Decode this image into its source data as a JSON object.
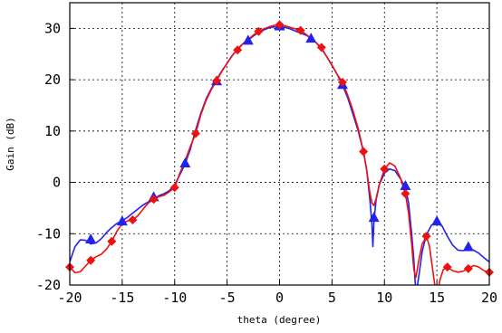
{
  "chart_data": {
    "type": "line",
    "xlabel": "theta (degree)",
    "ylabel": "Gain (dB)",
    "xlim": [
      -20,
      20
    ],
    "ylim": [
      -20,
      35
    ],
    "x_ticks": [
      -20,
      -15,
      -10,
      -5,
      0,
      5,
      10,
      15,
      20
    ],
    "y_ticks": [
      -20,
      -10,
      0,
      10,
      20,
      30
    ],
    "x_tick_labels": [
      "-20",
      "-15",
      "-10",
      "-5",
      "0",
      "5",
      "10",
      "15",
      "20"
    ],
    "y_tick_labels": [
      "-20",
      "-10",
      "0",
      "10",
      "20",
      "30"
    ],
    "grid": true,
    "grid_style": "dotted",
    "legend": "none",
    "series": [
      {
        "color": "#2222ee",
        "marker": "triangle",
        "curve": [
          [
            -20,
            -15.5
          ],
          [
            -19.5,
            -12.5
          ],
          [
            -19,
            -11.2
          ],
          [
            -18.5,
            -11.3
          ],
          [
            -18,
            -12
          ],
          [
            -17.5,
            -11.8
          ],
          [
            -17,
            -11
          ],
          [
            -16.5,
            -9.8
          ],
          [
            -16,
            -8.8
          ],
          [
            -15.5,
            -8
          ],
          [
            -15,
            -7.5
          ],
          [
            -14.5,
            -6.8
          ],
          [
            -14,
            -6
          ],
          [
            -13.5,
            -5.2
          ],
          [
            -13,
            -4.4
          ],
          [
            -12.5,
            -3.8
          ],
          [
            -12,
            -3.2
          ],
          [
            -11.5,
            -2.6
          ],
          [
            -11,
            -2.2
          ],
          [
            -10.5,
            -1.6
          ],
          [
            -10,
            -0.5
          ],
          [
            -9.5,
            1.5
          ],
          [
            -9,
            3.6
          ],
          [
            -8.5,
            6.5
          ],
          [
            -8,
            10.2
          ],
          [
            -7.5,
            13.5
          ],
          [
            -7,
            16.3
          ],
          [
            -6.5,
            18.3
          ],
          [
            -6,
            20
          ],
          [
            -5.5,
            21.7
          ],
          [
            -5,
            23.2
          ],
          [
            -4.5,
            24.7
          ],
          [
            -4,
            26
          ],
          [
            -3.5,
            27
          ],
          [
            -3,
            27.7
          ],
          [
            -2.5,
            28.5
          ],
          [
            -2,
            29.2
          ],
          [
            -1.5,
            29.7
          ],
          [
            -1,
            30.1
          ],
          [
            -0.5,
            30.3
          ],
          [
            0,
            30.3
          ],
          [
            0.5,
            30.2
          ],
          [
            1,
            29.9
          ],
          [
            1.5,
            29.5
          ],
          [
            2,
            29.1
          ],
          [
            2.5,
            28.7
          ],
          [
            3,
            28.1
          ],
          [
            3.5,
            27.2
          ],
          [
            4,
            26
          ],
          [
            4.5,
            24.5
          ],
          [
            5,
            22.8
          ],
          [
            5.5,
            21
          ],
          [
            6,
            19
          ],
          [
            6.5,
            16.5
          ],
          [
            7,
            13.3
          ],
          [
            7.5,
            10
          ],
          [
            8,
            6
          ],
          [
            8.3,
            2.5
          ],
          [
            8.6,
            -3
          ],
          [
            8.8,
            -8
          ],
          [
            8.9,
            -12.5
          ],
          [
            9,
            -7.5
          ],
          [
            9.2,
            -3.5
          ],
          [
            9.5,
            -0.5
          ],
          [
            10,
            1.8
          ],
          [
            10.5,
            2.6
          ],
          [
            11,
            2.3
          ],
          [
            11.5,
            0.8
          ],
          [
            12,
            -1
          ],
          [
            12.3,
            -4
          ],
          [
            12.6,
            -10
          ],
          [
            12.8,
            -15
          ],
          [
            13,
            -22
          ],
          [
            13.3,
            -18
          ],
          [
            13.6,
            -13.5
          ],
          [
            14,
            -10.2
          ],
          [
            14.5,
            -8.3
          ],
          [
            15,
            -7.8
          ],
          [
            15.5,
            -8.5
          ],
          [
            16,
            -10.5
          ],
          [
            16.5,
            -12.2
          ],
          [
            17,
            -13.2
          ],
          [
            17.5,
            -13.3
          ],
          [
            18,
            -13
          ],
          [
            18.5,
            -13.2
          ],
          [
            19,
            -13.8
          ],
          [
            19.5,
            -14.7
          ],
          [
            20,
            -15.5
          ]
        ],
        "markers": [
          [
            -18,
            -11
          ],
          [
            -15,
            -7.5
          ],
          [
            -12,
            -2.8
          ],
          [
            -9,
            3.8
          ],
          [
            -6,
            19.8
          ],
          [
            -3,
            27.7
          ],
          [
            0,
            30.5
          ],
          [
            3,
            28.1
          ],
          [
            6,
            19.1
          ],
          [
            9,
            -6.8
          ],
          [
            12,
            -0.6
          ],
          [
            15,
            -7.5
          ],
          [
            18,
            -12.5
          ]
        ]
      },
      {
        "color": "#ee1111",
        "marker": "diamond",
        "curve": [
          [
            -20,
            -16.5
          ],
          [
            -19.5,
            -17.6
          ],
          [
            -19,
            -17.4
          ],
          [
            -18.5,
            -16.3
          ],
          [
            -18,
            -15.2
          ],
          [
            -17.5,
            -14.5
          ],
          [
            -17,
            -14
          ],
          [
            -16.5,
            -13
          ],
          [
            -16,
            -11.5
          ],
          [
            -15.5,
            -9.5
          ],
          [
            -15,
            -8
          ],
          [
            -14.5,
            -7.5
          ],
          [
            -14,
            -7.3
          ],
          [
            -13.5,
            -6.5
          ],
          [
            -13,
            -5.2
          ],
          [
            -12.5,
            -4
          ],
          [
            -12,
            -3.3
          ],
          [
            -11.5,
            -2.8
          ],
          [
            -11,
            -2.5
          ],
          [
            -10.5,
            -1.8
          ],
          [
            -10,
            -1
          ],
          [
            -9.5,
            1.8
          ],
          [
            -9,
            4.2
          ],
          [
            -8.5,
            7
          ],
          [
            -8,
            9.5
          ],
          [
            -7.5,
            13.2
          ],
          [
            -7,
            16
          ],
          [
            -6.5,
            18.1
          ],
          [
            -6,
            19.8
          ],
          [
            -5.5,
            21.6
          ],
          [
            -5,
            23.2
          ],
          [
            -4.5,
            24.8
          ],
          [
            -4,
            25.8
          ],
          [
            -3.5,
            27
          ],
          [
            -3,
            27.8
          ],
          [
            -2.5,
            28.7
          ],
          [
            -2,
            29.4
          ],
          [
            -1.5,
            29.9
          ],
          [
            -1,
            30.3
          ],
          [
            -0.5,
            30.6
          ],
          [
            0,
            30.7
          ],
          [
            0.5,
            30.5
          ],
          [
            1,
            30.2
          ],
          [
            1.5,
            29.9
          ],
          [
            2,
            29.6
          ],
          [
            2.5,
            28.9
          ],
          [
            3,
            28
          ],
          [
            3.5,
            27.2
          ],
          [
            4,
            26.2
          ],
          [
            4.5,
            24.5
          ],
          [
            5,
            22.8
          ],
          [
            5.5,
            21
          ],
          [
            6,
            19.5
          ],
          [
            6.5,
            17
          ],
          [
            7,
            14
          ],
          [
            7.5,
            10.5
          ],
          [
            8,
            6
          ],
          [
            8.3,
            2.5
          ],
          [
            8.6,
            -1.8
          ],
          [
            8.8,
            -4
          ],
          [
            9,
            -4.5
          ],
          [
            9.2,
            -3.2
          ],
          [
            9.5,
            -0.5
          ],
          [
            10,
            2.6
          ],
          [
            10.5,
            3.8
          ],
          [
            11,
            3.2
          ],
          [
            11.5,
            1
          ],
          [
            12,
            -2.2
          ],
          [
            12.3,
            -6
          ],
          [
            12.6,
            -12
          ],
          [
            12.8,
            -17
          ],
          [
            13,
            -18.5
          ],
          [
            13.3,
            -15
          ],
          [
            13.6,
            -12
          ],
          [
            14,
            -10.5
          ],
          [
            14.3,
            -12.5
          ],
          [
            14.6,
            -17
          ],
          [
            14.8,
            -20
          ],
          [
            15,
            -22
          ],
          [
            15.3,
            -19
          ],
          [
            15.6,
            -17
          ],
          [
            16,
            -16.5
          ],
          [
            16.5,
            -17.2
          ],
          [
            17,
            -17.5
          ],
          [
            17.5,
            -17.3
          ],
          [
            18,
            -16.8
          ],
          [
            18.5,
            -16.2
          ],
          [
            19,
            -16.5
          ],
          [
            19.5,
            -17.2
          ],
          [
            20,
            -17.5
          ]
        ],
        "markers": [
          [
            -20,
            -16.5
          ],
          [
            -18,
            -15.2
          ],
          [
            -16,
            -11.5
          ],
          [
            -14,
            -7.3
          ],
          [
            -12,
            -3.3
          ],
          [
            -10,
            -1
          ],
          [
            -8,
            9.5
          ],
          [
            -6,
            19.8
          ],
          [
            -4,
            25.8
          ],
          [
            -2,
            29.4
          ],
          [
            0,
            30.7
          ],
          [
            2,
            29.6
          ],
          [
            4,
            26.3
          ],
          [
            6,
            19.5
          ],
          [
            8,
            6
          ],
          [
            10,
            2.6
          ],
          [
            12,
            -2.2
          ],
          [
            14,
            -10.5
          ],
          [
            16,
            -16.5
          ],
          [
            18,
            -16.8
          ],
          [
            20,
            -17.5
          ]
        ]
      }
    ]
  }
}
